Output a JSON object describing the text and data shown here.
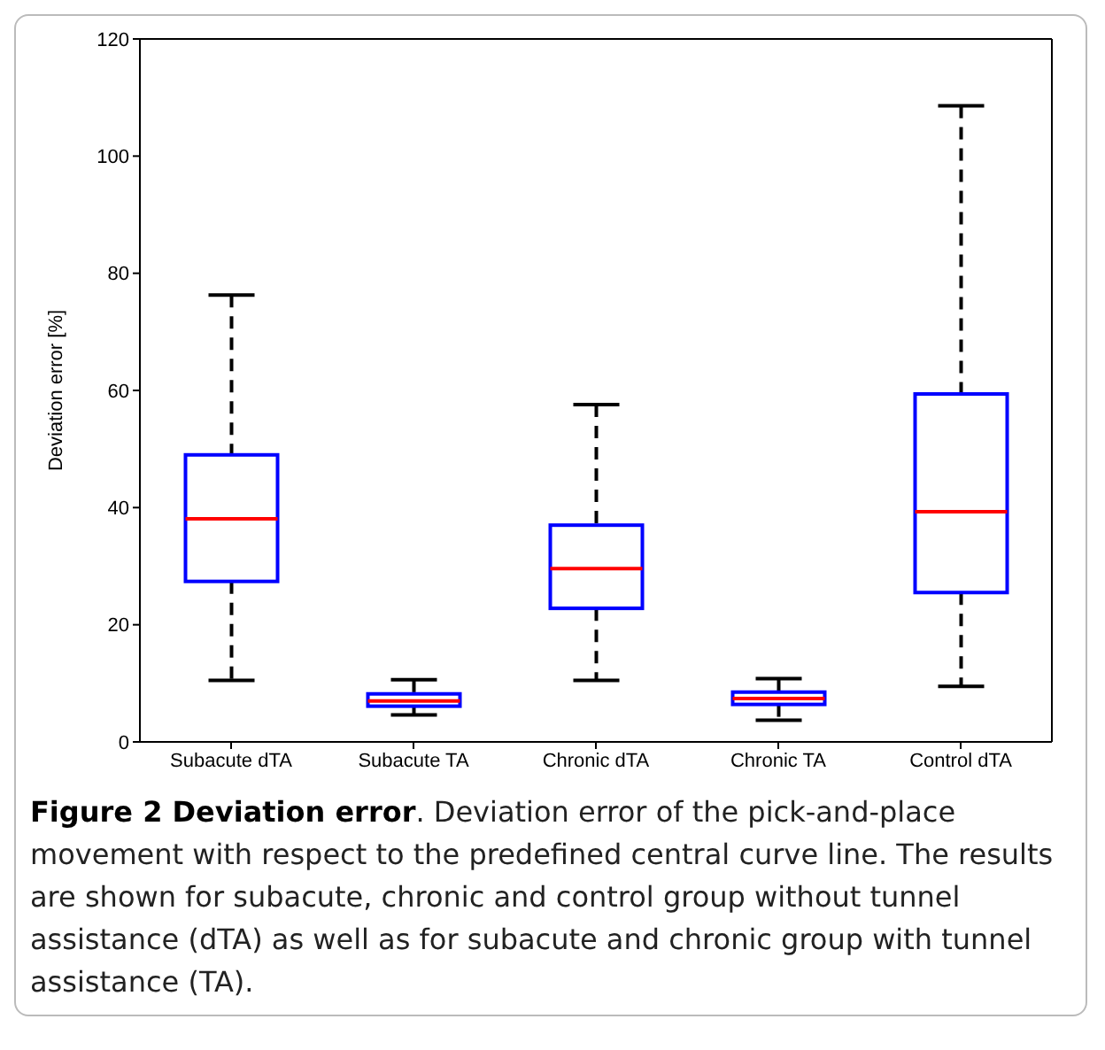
{
  "chart_data": {
    "type": "box",
    "title": "Figure 2 Deviation error",
    "ylabel": "Deviation error [%]",
    "categories": [
      "Subacute dTA",
      "Subacute TA",
      "Chronic dTA",
      "Chronic TA",
      "Control dTA"
    ],
    "boxes": [
      {
        "low": 10.5,
        "q1": 27.4,
        "median": 38.1,
        "q3": 49,
        "high": 76.3
      },
      {
        "low": 4.6,
        "q1": 6.1,
        "median": 7,
        "q3": 8.2,
        "high": 10.6
      },
      {
        "low": 10.5,
        "q1": 22.8,
        "median": 29.6,
        "q3": 37,
        "high": 57.6
      },
      {
        "low": 3.7,
        "q1": 6.4,
        "median": 7.4,
        "q3": 8.5,
        "high": 10.8
      },
      {
        "low": 9.5,
        "q1": 25.5,
        "median": 39.3,
        "q3": 59.4,
        "high": 108.6
      }
    ],
    "color": "#0000ff",
    "ylim": [
      0,
      120
    ],
    "yticks": [
      0,
      20,
      40,
      60,
      80,
      100,
      120
    ],
    "grid": false,
    "annotations": [
      ". Deviation error of the pick-and-place movement with respect to the predefined central curve line. The results are shown for subacute, chronic and control group without tunnel assistance (dTA) as well as for subacute and chronic group with tunnel assistance (TA)."
    ]
  }
}
